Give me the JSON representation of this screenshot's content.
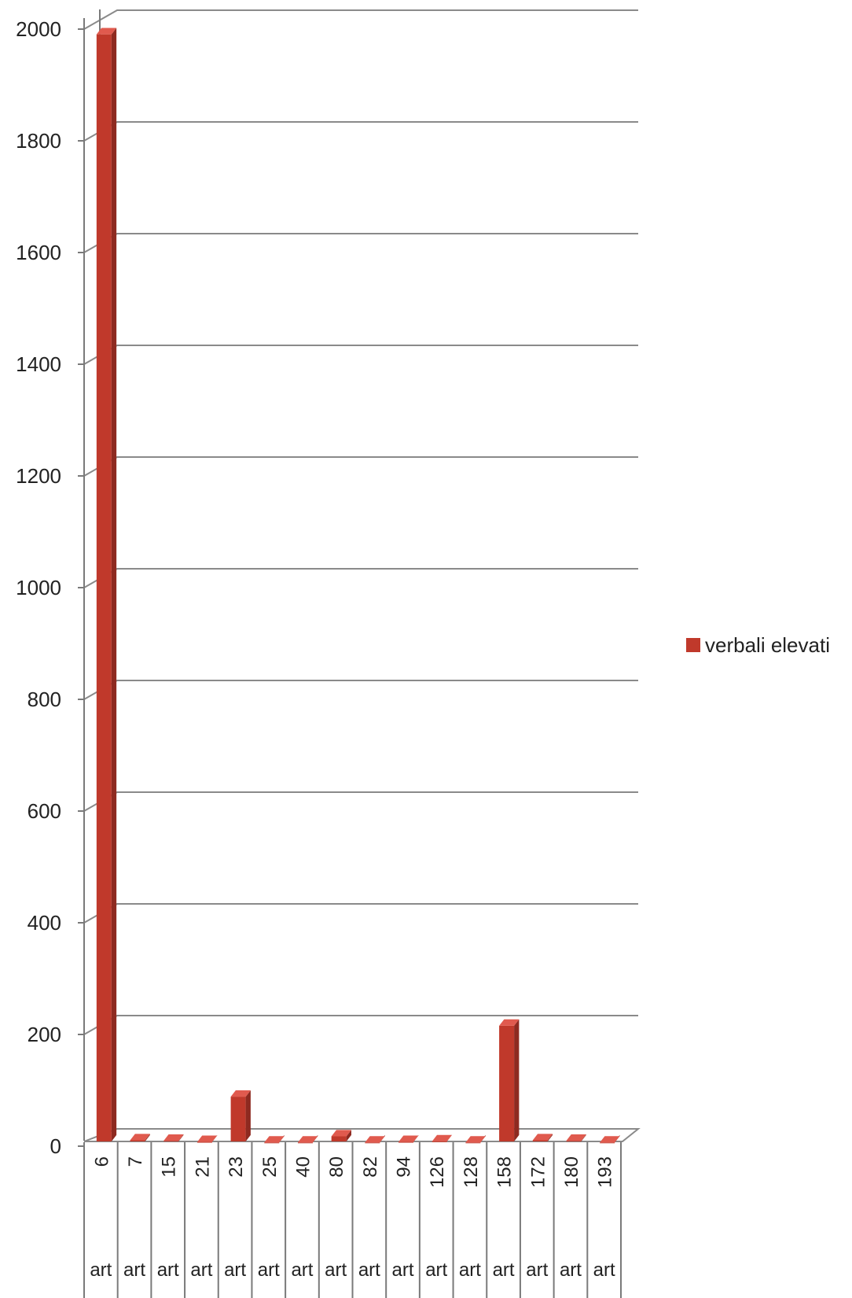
{
  "chart_data": {
    "type": "bar",
    "categories": [
      "6",
      "7",
      "15",
      "21",
      "23",
      "25",
      "40",
      "80",
      "82",
      "94",
      "126",
      "128",
      "158",
      "172",
      "180",
      "193"
    ],
    "category_group": "art",
    "series": [
      {
        "name": "verbali elevati",
        "values": [
          1985,
          5,
          4,
          2,
          83,
          1,
          1,
          12,
          1,
          2,
          3,
          1,
          210,
          5,
          4,
          1
        ]
      }
    ],
    "ylim": [
      0,
      2000
    ],
    "yticks": [
      0,
      200,
      400,
      600,
      800,
      1000,
      1200,
      1400,
      1600,
      1800,
      2000
    ],
    "grid": true,
    "legend_position": "right",
    "colors": {
      "bar": "#c0392b",
      "bar_top": "#e05a4e",
      "bar_side": "#8e2a20",
      "grid": "#8a8a8a"
    }
  }
}
